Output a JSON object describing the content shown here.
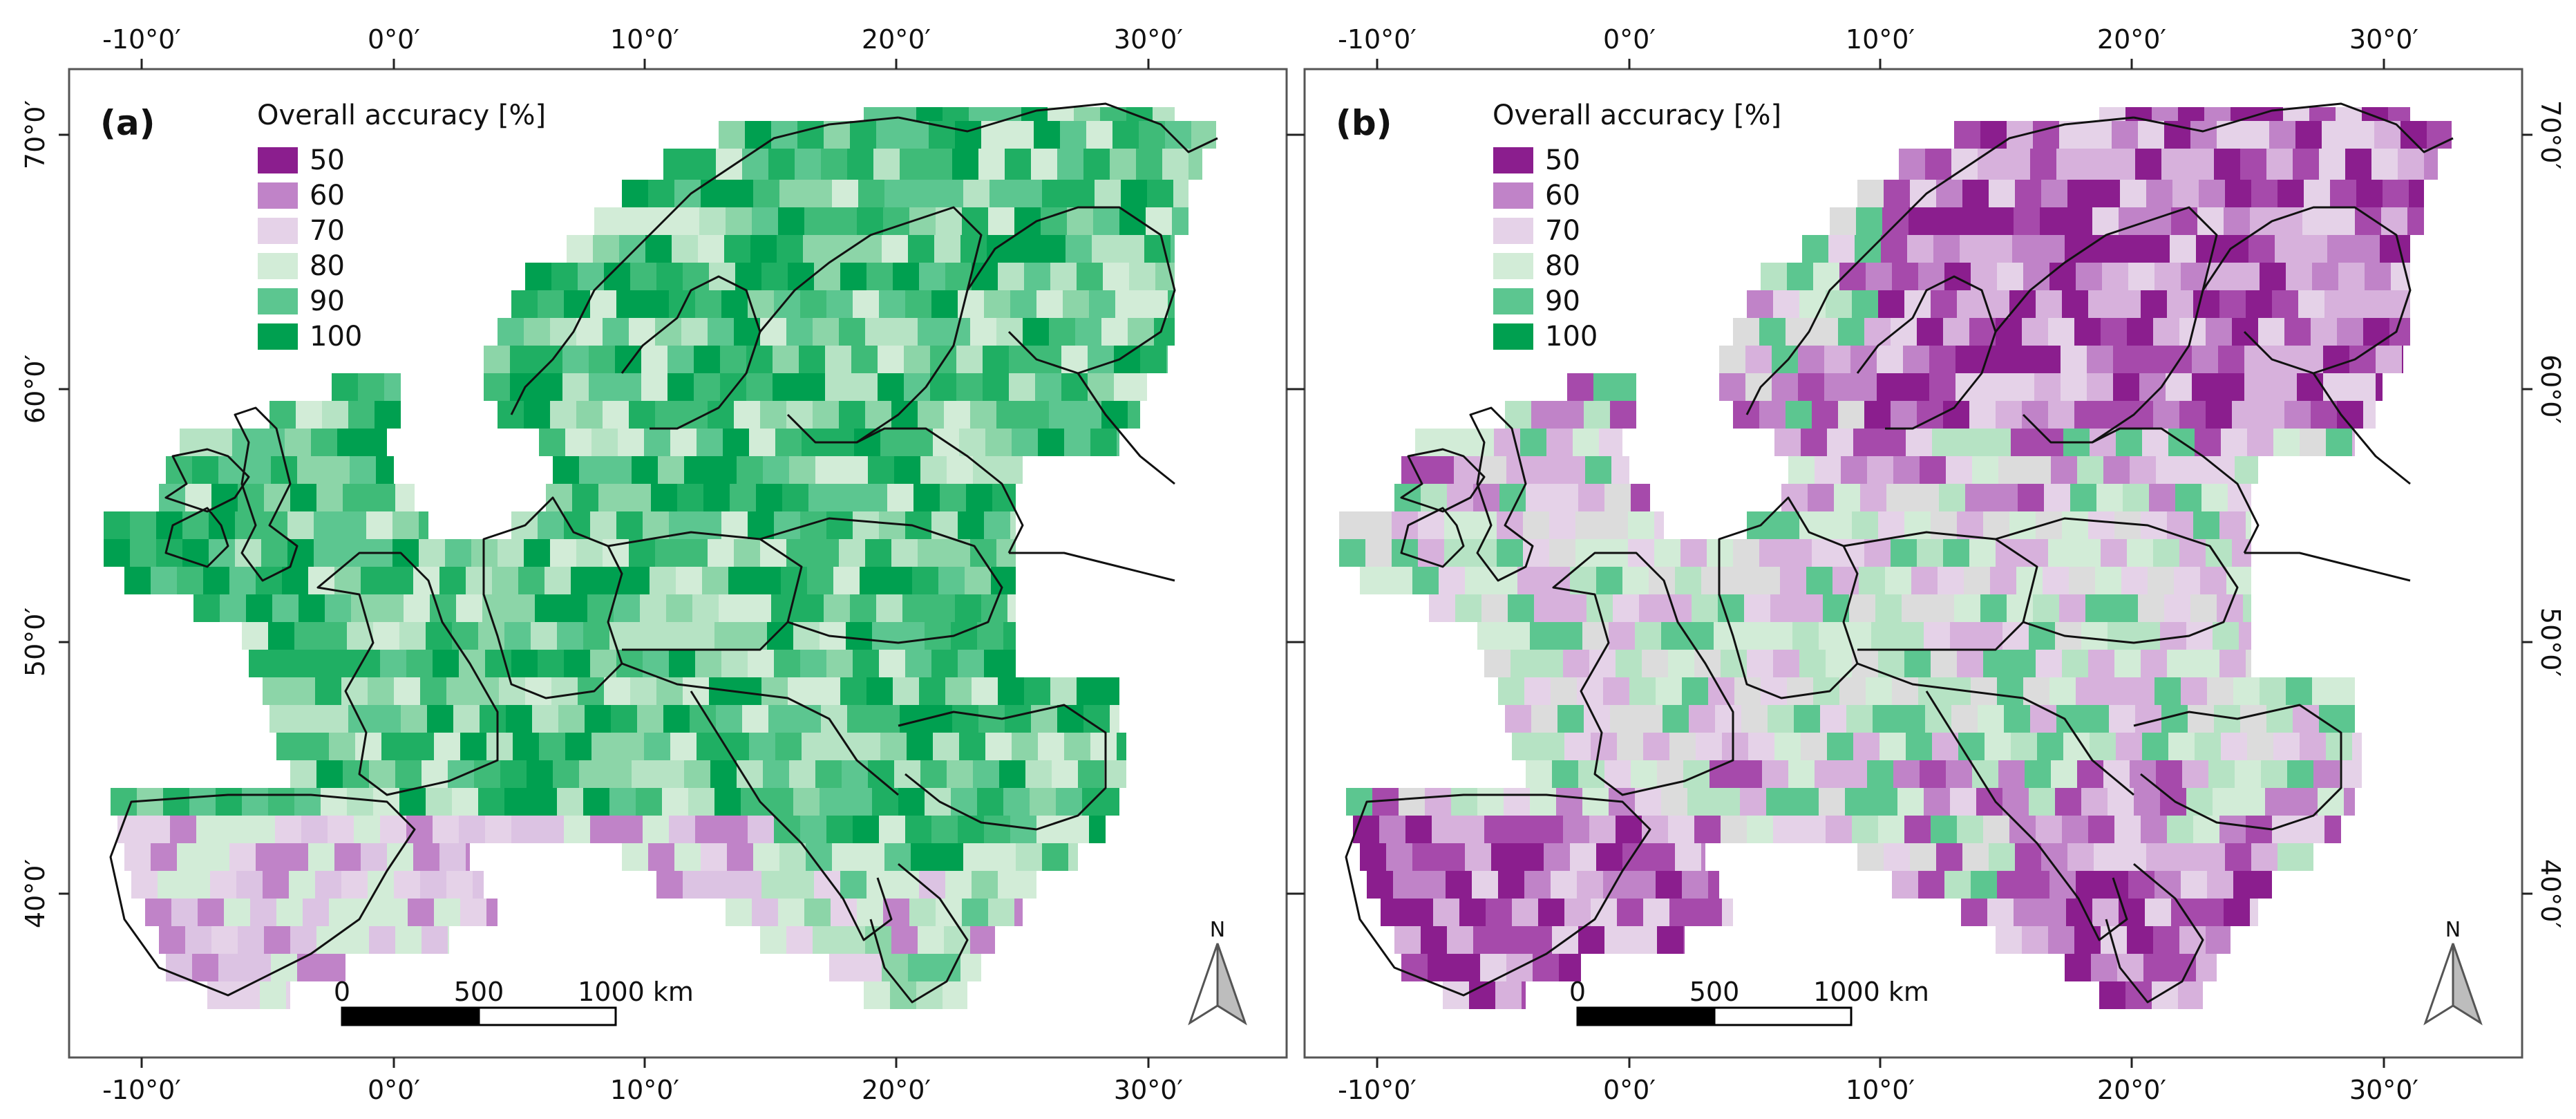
{
  "panels": [
    {
      "id": "a",
      "label": "(a)",
      "legend": {
        "title": "Overall accuracy [%]",
        "classes": [
          {
            "label": "50",
            "color": "#8b1e8e"
          },
          {
            "label": "60",
            "color": "#c083c8"
          },
          {
            "label": "70",
            "color": "#e5d2e8"
          },
          {
            "label": "80",
            "color": "#d2ecd7"
          },
          {
            "label": "90",
            "color": "#5cc690"
          },
          {
            "label": "100",
            "color": "#00a050"
          }
        ]
      },
      "scale_bar": {
        "labels": [
          "0",
          "500",
          "1000 km"
        ]
      },
      "north_arrow": "N",
      "x_ticks": [
        "-10°0′",
        "0°0′",
        "10°0′",
        "20°0′",
        "30°0′"
      ],
      "y_ticks": [
        "70°0′",
        "60°0′",
        "50°0′",
        "40°0′"
      ],
      "dominant_class": "90-100"
    },
    {
      "id": "b",
      "label": "(b)",
      "legend": {
        "title": "Overall accuracy [%]",
        "classes": [
          {
            "label": "50",
            "color": "#8b1e8e"
          },
          {
            "label": "60",
            "color": "#c083c8"
          },
          {
            "label": "70",
            "color": "#e5d2e8"
          },
          {
            "label": "80",
            "color": "#d2ecd7"
          },
          {
            "label": "90",
            "color": "#5cc690"
          },
          {
            "label": "100",
            "color": "#00a050"
          }
        ]
      },
      "scale_bar": {
        "labels": [
          "0",
          "500",
          "1000 km"
        ]
      },
      "north_arrow": "N",
      "x_ticks": [
        "-10°0′",
        "0°0′",
        "10°0′",
        "20°0′",
        "30°0′"
      ],
      "y_ticks": [
        "70°0′",
        "60°0′",
        "50°0′",
        "40°0′"
      ],
      "dominant_class": "50-80"
    }
  ]
}
